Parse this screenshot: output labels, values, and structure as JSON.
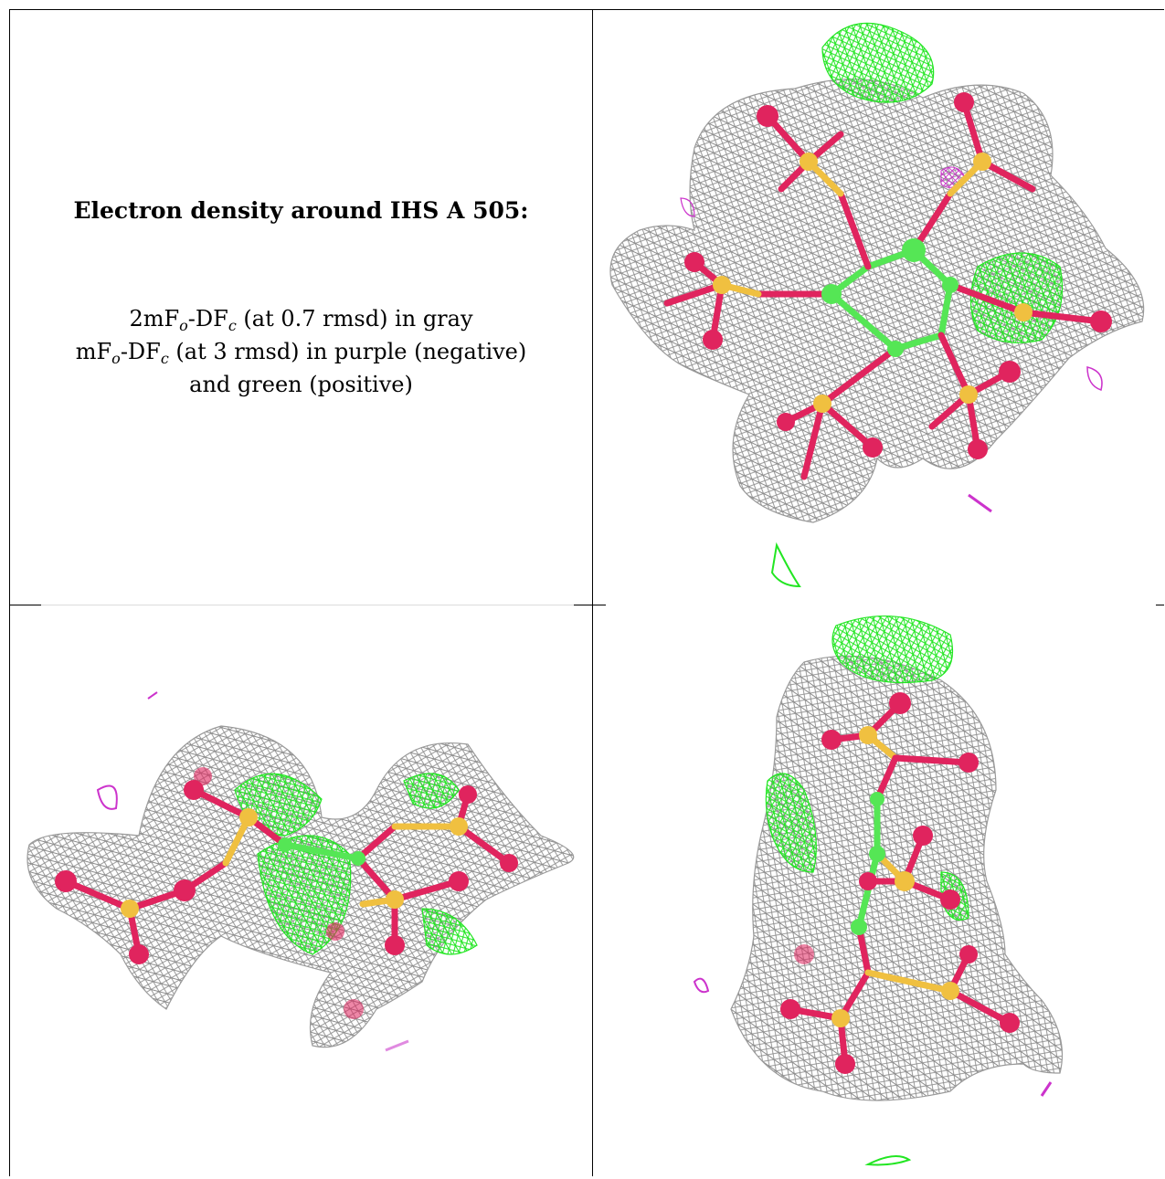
{
  "caption": {
    "title": "Electron density around IHS A 505:",
    "line1_pre": "2mF",
    "line1_sub1": "o",
    "line1_mid": "-DF",
    "line1_sub2": "c",
    "line1_post": " (at 0.7 rmsd) in gray",
    "line2_pre": "mF",
    "line2_sub1": "o",
    "line2_mid": "-DF",
    "line2_sub2": "c",
    "line2_post": " (at 3 rmsd) in purple (negative)",
    "line3": "and green (positive)"
  },
  "colors": {
    "mesh_2fofc": "#8c8c8c",
    "mesh_positive": "#22e622",
    "mesh_negative": "#cc33cc",
    "carbon": "#55e655",
    "sulfur": "#f0c040",
    "oxygen": "#e0245e"
  },
  "panels": [
    "view-top",
    "view-side",
    "view-end"
  ]
}
